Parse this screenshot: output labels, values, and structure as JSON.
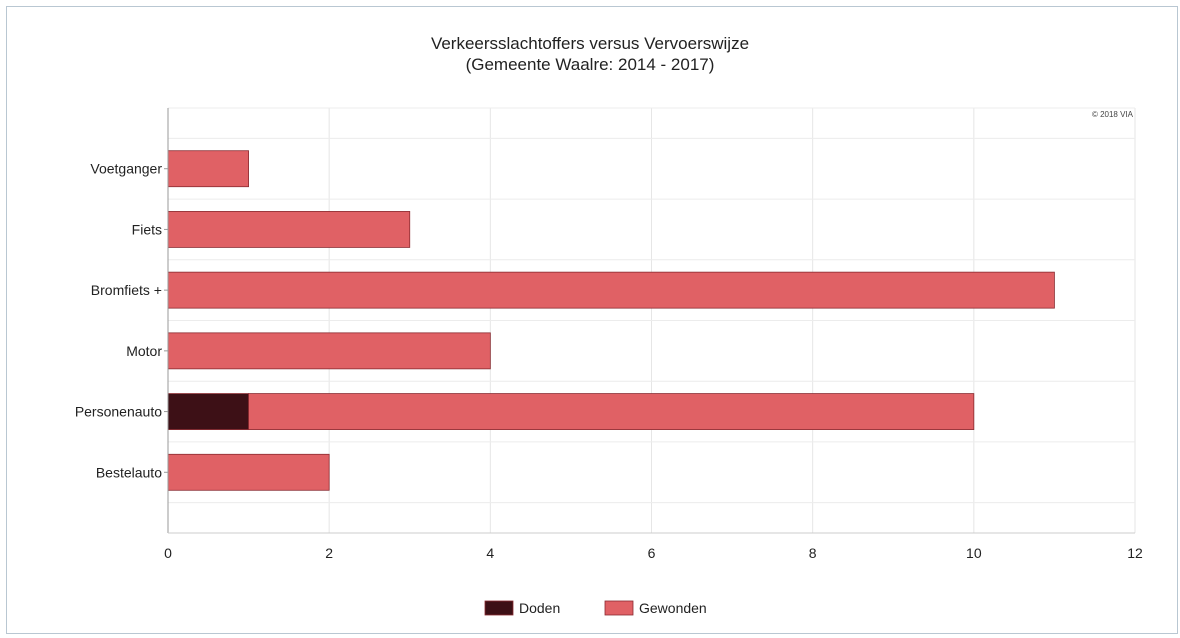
{
  "chart_data": {
    "type": "bar",
    "orientation": "horizontal",
    "stacked": true,
    "title": "Verkeersslachtoffers versus Vervoerswijze",
    "subtitle": "(Gemeente Waalre: 2014 - 2017)",
    "credit": "© 2018 VIA",
    "categories": [
      "Voetganger",
      "Fiets",
      "Bromfiets +",
      "Motor",
      "Personenauto",
      "Bestelauto"
    ],
    "series": [
      {
        "name": "Doden",
        "color": "#3d1016",
        "values": [
          0,
          0,
          0,
          0,
          1,
          0
        ]
      },
      {
        "name": "Gewonden",
        "color": "#e06165",
        "values": [
          1,
          3,
          11,
          4,
          9,
          2
        ]
      }
    ],
    "xlim": [
      0,
      12
    ],
    "xticks": [
      0,
      2,
      4,
      6,
      8,
      10,
      12
    ],
    "grid": true,
    "legend_position": "bottom"
  }
}
